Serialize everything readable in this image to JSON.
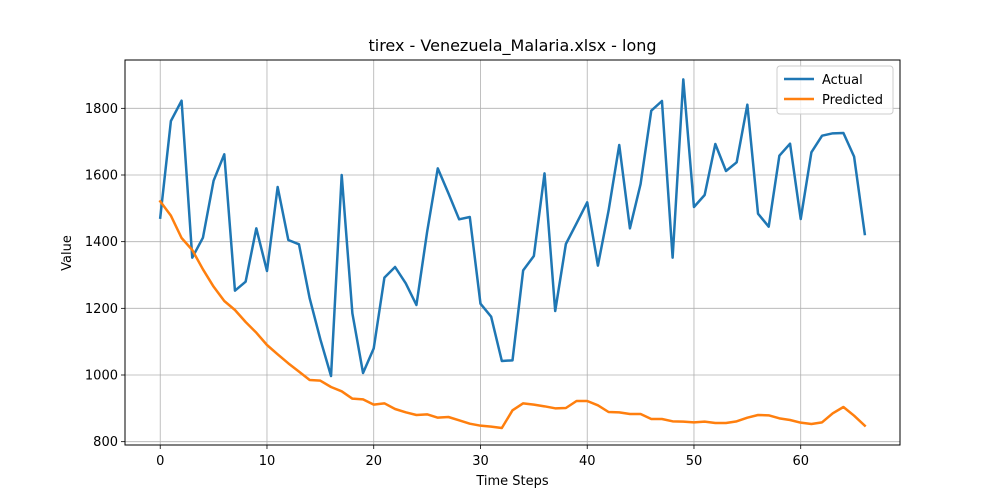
{
  "chart_data": {
    "type": "line",
    "title": "tirex - Venezuela_Malaria.xlsx - long",
    "xlabel": "Time Steps",
    "ylabel": "Value",
    "xlim": [
      -3.3,
      69.3
    ],
    "ylim": [
      790,
      1945
    ],
    "xticks": [
      0,
      10,
      20,
      30,
      40,
      50,
      60
    ],
    "yticks": [
      800,
      1000,
      1200,
      1400,
      1600,
      1800
    ],
    "grid": true,
    "legend": "top-right",
    "series": [
      {
        "name": "Actual",
        "color": "#1f77b4",
        "values": [
          1472,
          1762,
          1823,
          1352,
          1412,
          1583,
          1662,
          1253,
          1280,
          1440,
          1312,
          1564,
          1405,
          1392,
          1230,
          1107,
          997,
          1600,
          1185,
          1006,
          1080,
          1292,
          1324,
          1275,
          1210,
          1429,
          1620,
          1545,
          1467,
          1474,
          1214,
          1175,
          1042,
          1044,
          1314,
          1357,
          1605,
          1192,
          1393,
          1455,
          1518,
          1328,
          1493,
          1690,
          1440,
          1573,
          1793,
          1822,
          1352,
          1887,
          1504,
          1540,
          1693,
          1612,
          1638,
          1811,
          1484,
          1445,
          1658,
          1694,
          1468,
          1668,
          1718,
          1725,
          1726,
          1655,
          1423
        ]
      },
      {
        "name": "Predicted",
        "color": "#ff7f0e",
        "values": [
          1521,
          1478,
          1411,
          1375,
          1317,
          1265,
          1222,
          1195,
          1159,
          1127,
          1090,
          1062,
          1035,
          1010,
          985,
          983,
          964,
          951,
          929,
          927,
          911,
          915,
          898,
          888,
          880,
          882,
          872,
          874,
          864,
          854,
          848,
          845,
          841,
          894,
          915,
          911,
          906,
          900,
          901,
          922,
          922,
          909,
          889,
          888,
          883,
          883,
          868,
          868,
          861,
          860,
          858,
          860,
          856,
          856,
          861,
          872,
          880,
          879,
          870,
          865,
          857,
          853,
          858,
          885,
          904,
          878,
          848
        ]
      }
    ]
  }
}
